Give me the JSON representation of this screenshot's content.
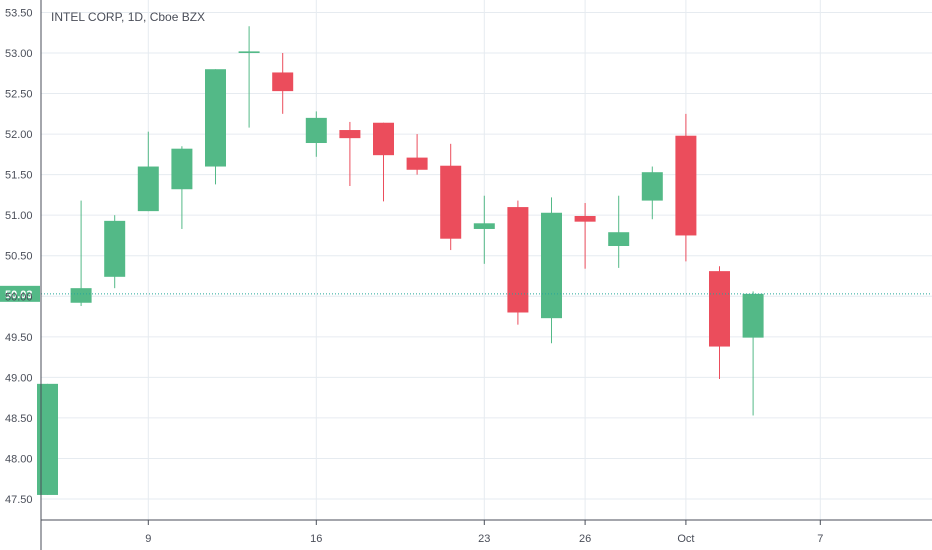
{
  "chart_data": {
    "type": "candlestick",
    "title": "INTEL CORP, 1D, Cboe BZX",
    "grid": true,
    "ylim": [
      47.3,
      53.5
    ],
    "y_ticks": [
      "47.50",
      "48.00",
      "48.50",
      "49.00",
      "49.50",
      "50.00",
      "50.50",
      "51.00",
      "51.50",
      "52.00",
      "52.50",
      "53.00",
      "53.50"
    ],
    "x_ticks": [
      {
        "label": "9",
        "index": 3
      },
      {
        "label": "16",
        "index": 8
      },
      {
        "label": "23",
        "index": 13
      },
      {
        "label": "26",
        "index": 16
      },
      {
        "label": "Oct",
        "index": 19
      },
      {
        "label": "7",
        "index": 23
      }
    ],
    "last_price": "50.03",
    "colors": {
      "up": "#53b987",
      "down": "#eb4d5c",
      "grid": "#e6ebf0",
      "axis": "#4a4e59"
    },
    "candles": [
      {
        "o": 47.55,
        "h": 48.92,
        "l": 47.55,
        "c": 48.92
      },
      {
        "o": 49.92,
        "h": 51.18,
        "l": 49.88,
        "c": 50.1
      },
      {
        "o": 50.24,
        "h": 51.0,
        "l": 50.1,
        "c": 50.93
      },
      {
        "o": 51.05,
        "h": 52.03,
        "l": 51.05,
        "c": 51.6
      },
      {
        "o": 51.32,
        "h": 51.85,
        "l": 50.83,
        "c": 51.82
      },
      {
        "o": 51.6,
        "h": 52.8,
        "l": 51.38,
        "c": 52.8
      },
      {
        "o": 53.0,
        "h": 53.33,
        "l": 52.08,
        "c": 53.02
      },
      {
        "o": 52.76,
        "h": 53.0,
        "l": 52.25,
        "c": 52.53
      },
      {
        "o": 51.89,
        "h": 52.28,
        "l": 51.72,
        "c": 52.2
      },
      {
        "o": 52.05,
        "h": 52.15,
        "l": 51.36,
        "c": 51.95
      },
      {
        "o": 52.14,
        "h": 52.14,
        "l": 51.17,
        "c": 51.74
      },
      {
        "o": 51.71,
        "h": 52.0,
        "l": 51.5,
        "c": 51.56
      },
      {
        "o": 51.61,
        "h": 51.88,
        "l": 50.57,
        "c": 50.71
      },
      {
        "o": 50.83,
        "h": 51.24,
        "l": 50.4,
        "c": 50.9
      },
      {
        "o": 51.1,
        "h": 51.18,
        "l": 49.65,
        "c": 49.8
      },
      {
        "o": 49.73,
        "h": 51.22,
        "l": 49.42,
        "c": 51.03
      },
      {
        "o": 50.99,
        "h": 51.15,
        "l": 50.34,
        "c": 50.92
      },
      {
        "o": 50.62,
        "h": 51.24,
        "l": 50.35,
        "c": 50.79
      },
      {
        "o": 51.18,
        "h": 51.6,
        "l": 50.95,
        "c": 51.53
      },
      {
        "o": 51.98,
        "h": 52.25,
        "l": 50.43,
        "c": 50.75
      },
      {
        "o": 50.31,
        "h": 50.37,
        "l": 48.98,
        "c": 49.38
      },
      {
        "o": 49.49,
        "h": 50.06,
        "l": 48.53,
        "c": 50.03
      }
    ]
  }
}
